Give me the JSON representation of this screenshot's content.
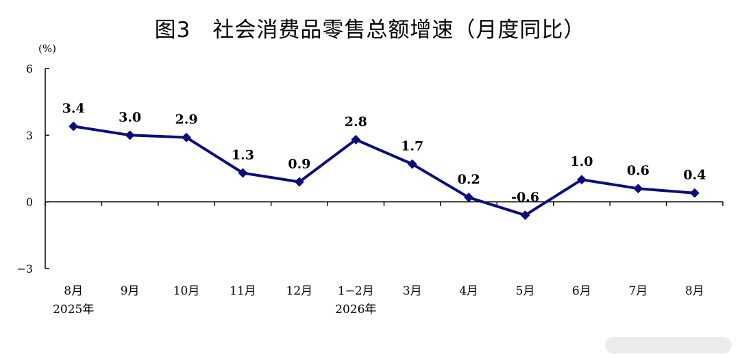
{
  "title": "图3　社会消费品零售总额增速（月度同比）",
  "unit_label": "(%)",
  "chart_data": {
    "type": "line",
    "title": "图3　社会消费品零售总额增速（月度同比）",
    "ylabel": "(%)",
    "xlabel": "",
    "ylim": [
      -3,
      6
    ],
    "yticks": [
      "6",
      "3",
      "0",
      "−3"
    ],
    "ytick_values": [
      6,
      3,
      0,
      -3
    ],
    "categories": [
      "8月",
      "9月",
      "10月",
      "11月",
      "12月",
      "1−2月",
      "3月",
      "4月",
      "5月",
      "6月",
      "7月",
      "8月"
    ],
    "year_labels": [
      {
        "index": 0,
        "text": "2025年"
      },
      {
        "index": 5,
        "text": "2026年"
      }
    ],
    "values": [
      3.4,
      3.0,
      2.9,
      1.3,
      0.9,
      2.8,
      1.7,
      0.2,
      -0.6,
      1.0,
      0.6,
      0.4
    ],
    "data_labels": [
      "3.4",
      "3.0",
      "2.9",
      "1.3",
      "0.9",
      "2.8",
      "1.7",
      "0.2",
      "-0.6",
      "1.0",
      "0.6",
      "0.4"
    ],
    "grid": false,
    "line_color": "#0c0c7a",
    "marker": "diamond"
  }
}
